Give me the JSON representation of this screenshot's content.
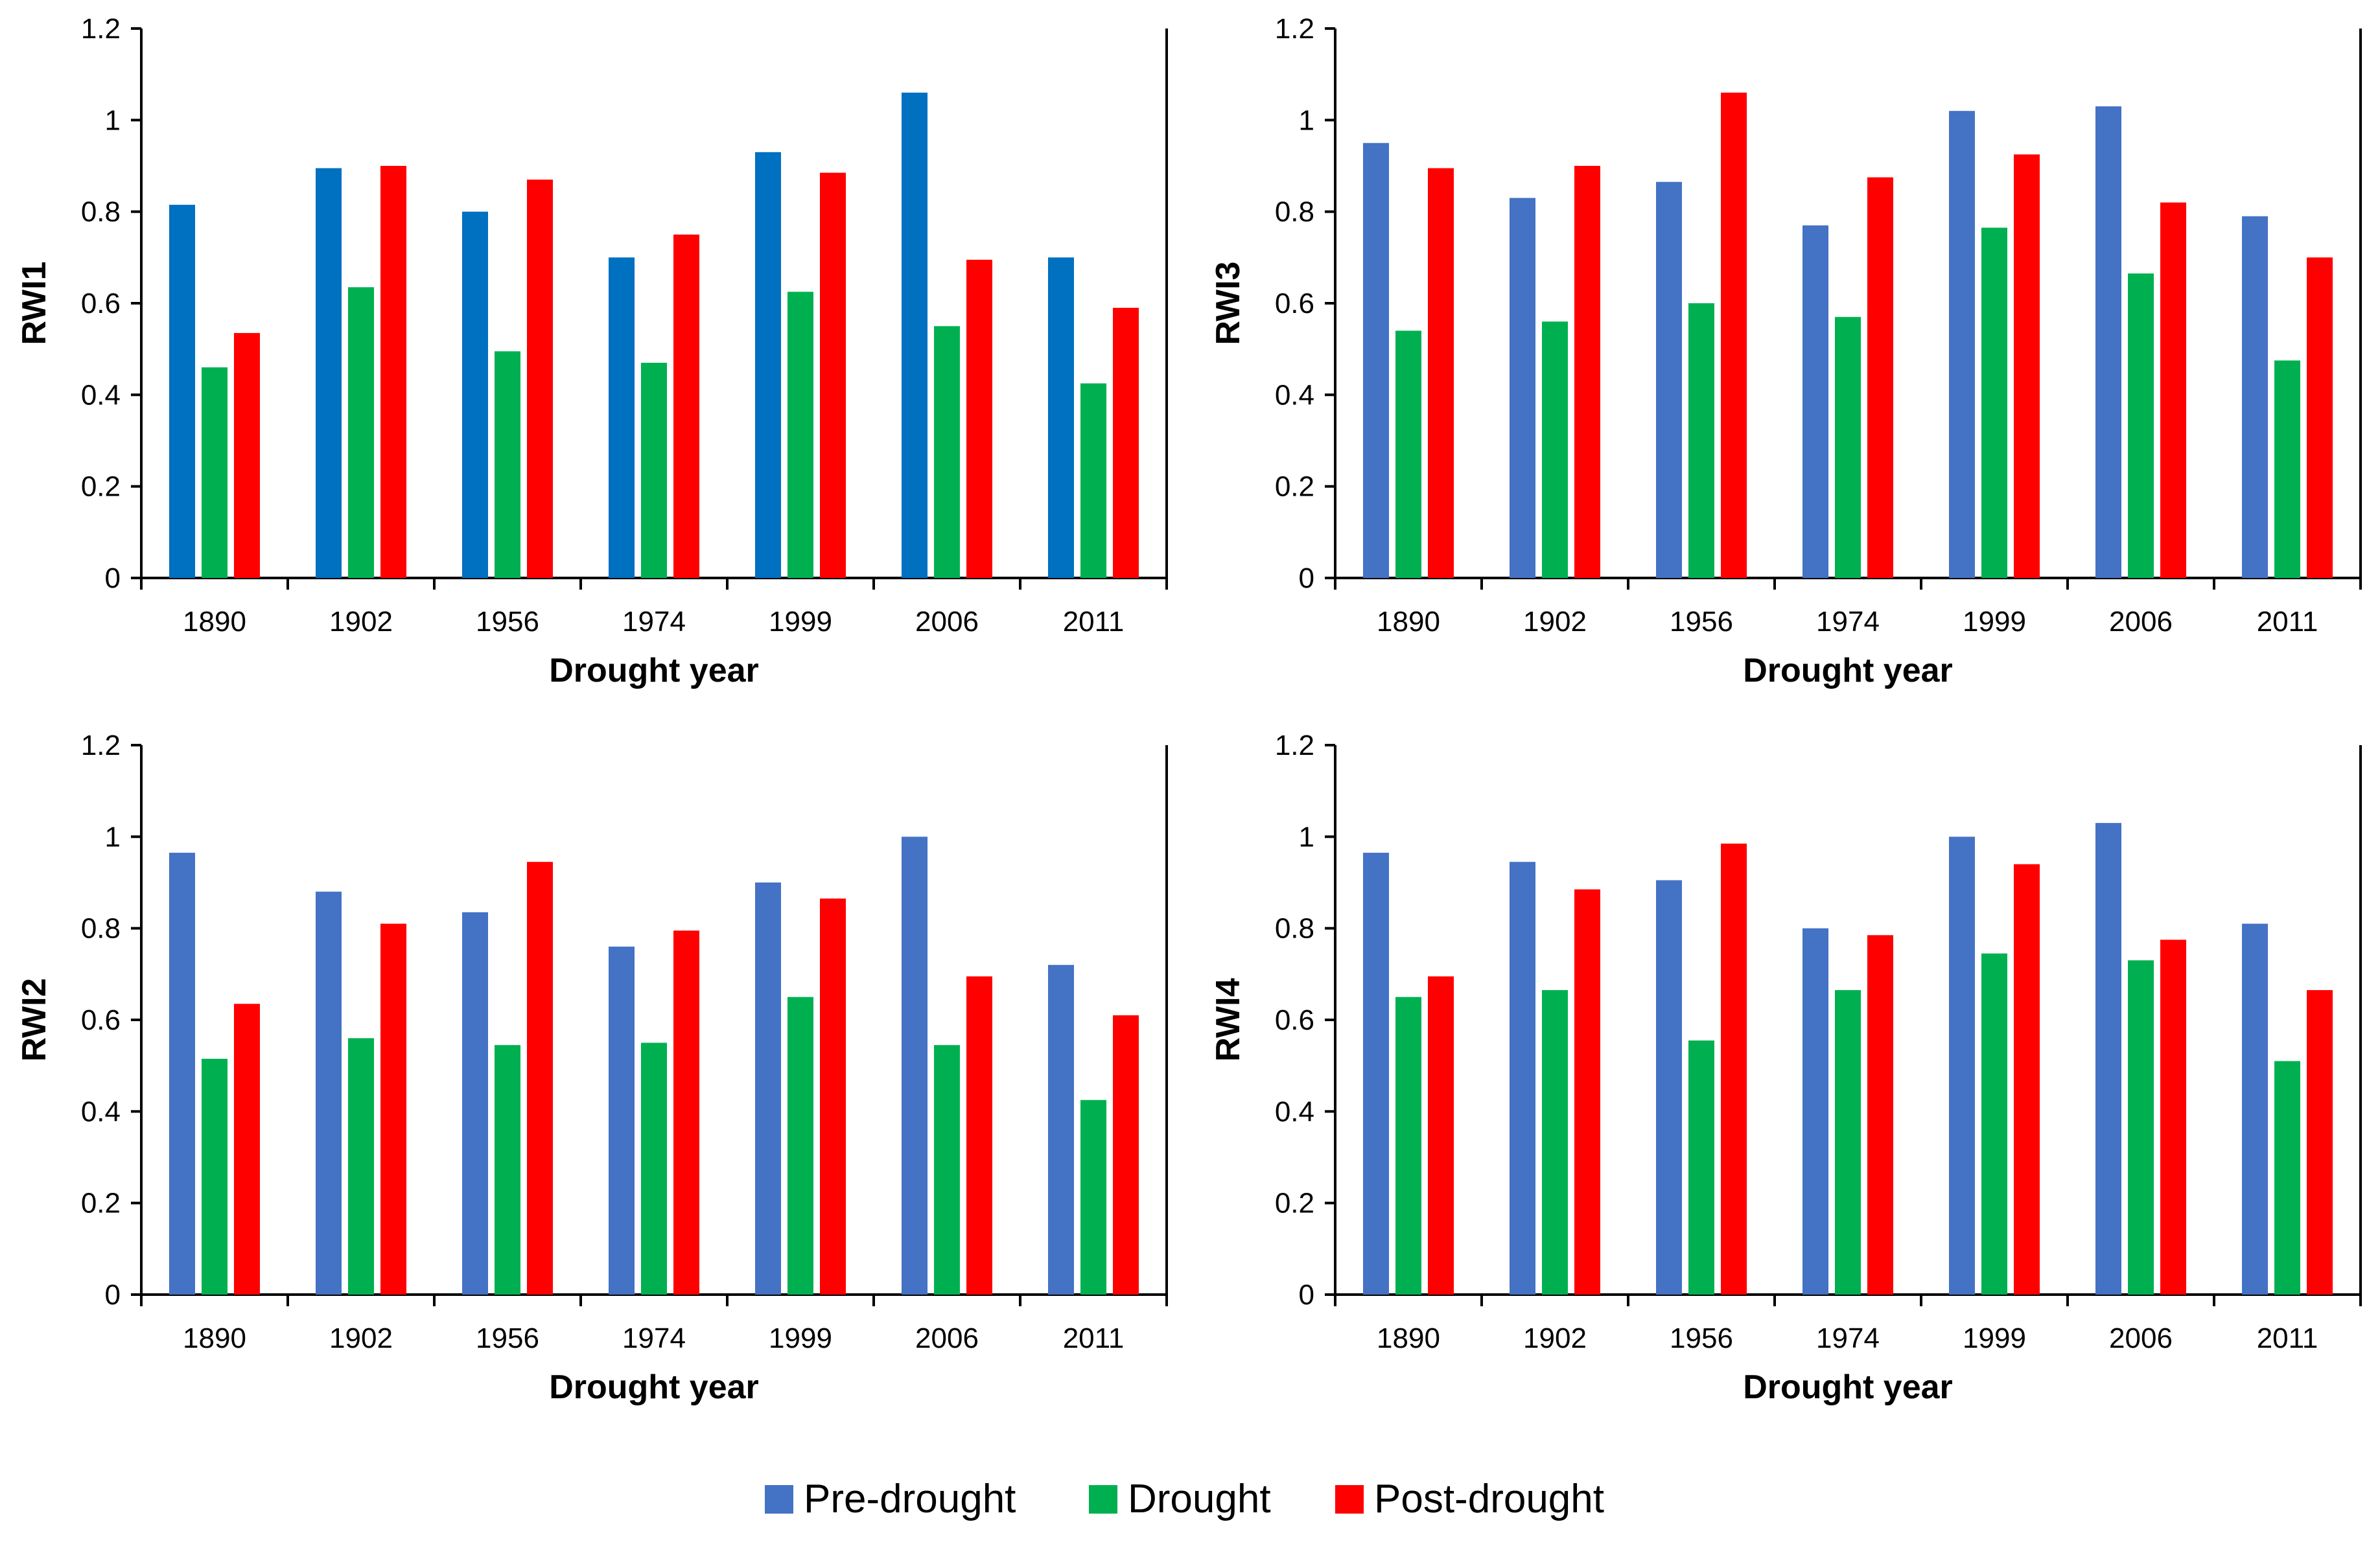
{
  "colors": {
    "pre_drought_rwi1": "#0070C0",
    "pre_drought": "#4472C4",
    "drought": "#00B050",
    "post_drought": "#FF0000"
  },
  "legend": {
    "items": [
      {
        "label": "Pre-drought",
        "color": "#4472C4"
      },
      {
        "label": "Drought",
        "color": "#00B050"
      },
      {
        "label": "Post-drought",
        "color": "#FF0000"
      }
    ]
  },
  "chart_data": [
    {
      "type": "bar",
      "id": "rwi1",
      "title": "",
      "xlabel": "Drought year",
      "ylabel": "RWI1",
      "ylim": [
        0,
        1.2
      ],
      "yticks": [
        "0",
        "0.2",
        "0.4",
        "0.6",
        "0.8",
        "1",
        "1.2"
      ],
      "categories": [
        "1890",
        "1902",
        "1956",
        "1974",
        "1999",
        "2006",
        "2011"
      ],
      "series": [
        {
          "name": "Pre-drought",
          "color": "#0070C0",
          "values": [
            0.815,
            0.895,
            0.8,
            0.7,
            0.93,
            1.06,
            0.7
          ]
        },
        {
          "name": "Drought",
          "color": "#00B050",
          "values": [
            0.46,
            0.635,
            0.495,
            0.47,
            0.625,
            0.55,
            0.425
          ]
        },
        {
          "name": "Post-drought",
          "color": "#FF0000",
          "values": [
            0.535,
            0.9,
            0.87,
            0.75,
            0.885,
            0.695,
            0.59
          ]
        }
      ]
    },
    {
      "type": "bar",
      "id": "rwi3",
      "title": "",
      "xlabel": "Drought year",
      "ylabel": "RWI3",
      "ylim": [
        0,
        1.2
      ],
      "yticks": [
        "0",
        "0.2",
        "0.4",
        "0.6",
        "0.8",
        "1",
        "1.2"
      ],
      "categories": [
        "1890",
        "1902",
        "1956",
        "1974",
        "1999",
        "2006",
        "2011"
      ],
      "series": [
        {
          "name": "Pre-drought",
          "color": "#4472C4",
          "values": [
            0.95,
            0.83,
            0.865,
            0.77,
            1.02,
            1.03,
            0.79
          ]
        },
        {
          "name": "Drought",
          "color": "#00B050",
          "values": [
            0.54,
            0.56,
            0.6,
            0.57,
            0.765,
            0.665,
            0.475
          ]
        },
        {
          "name": "Post-drought",
          "color": "#FF0000",
          "values": [
            0.895,
            0.9,
            1.06,
            0.875,
            0.925,
            0.82,
            0.7
          ]
        }
      ]
    },
    {
      "type": "bar",
      "id": "rwi2",
      "title": "",
      "xlabel": "Drought year",
      "ylabel": "RWI2",
      "ylim": [
        0,
        1.2
      ],
      "yticks": [
        "0",
        "0.2",
        "0.4",
        "0.6",
        "0.8",
        "1",
        "1.2"
      ],
      "categories": [
        "1890",
        "1902",
        "1956",
        "1974",
        "1999",
        "2006",
        "2011"
      ],
      "series": [
        {
          "name": "Pre-drought",
          "color": "#4472C4",
          "values": [
            0.965,
            0.88,
            0.835,
            0.76,
            0.9,
            1.0,
            0.72
          ]
        },
        {
          "name": "Drought",
          "color": "#00B050",
          "values": [
            0.515,
            0.56,
            0.545,
            0.55,
            0.65,
            0.545,
            0.425
          ]
        },
        {
          "name": "Post-drought",
          "color": "#FF0000",
          "values": [
            0.635,
            0.81,
            0.945,
            0.795,
            0.865,
            0.695,
            0.61
          ]
        }
      ]
    },
    {
      "type": "bar",
      "id": "rwi4",
      "title": "",
      "xlabel": "Drought year",
      "ylabel": "RWI4",
      "ylim": [
        0,
        1.2
      ],
      "yticks": [
        "0",
        "0.2",
        "0.4",
        "0.6",
        "0.8",
        "1",
        "1.2"
      ],
      "categories": [
        "1890",
        "1902",
        "1956",
        "1974",
        "1999",
        "2006",
        "2011"
      ],
      "series": [
        {
          "name": "Pre-drought",
          "color": "#4472C4",
          "values": [
            0.965,
            0.945,
            0.905,
            0.8,
            1.0,
            1.03,
            0.81
          ]
        },
        {
          "name": "Drought",
          "color": "#00B050",
          "values": [
            0.65,
            0.665,
            0.555,
            0.665,
            0.745,
            0.73,
            0.51
          ]
        },
        {
          "name": "Post-drought",
          "color": "#FF0000",
          "values": [
            0.695,
            0.885,
            0.985,
            0.785,
            0.94,
            0.775,
            0.665
          ]
        }
      ]
    }
  ]
}
